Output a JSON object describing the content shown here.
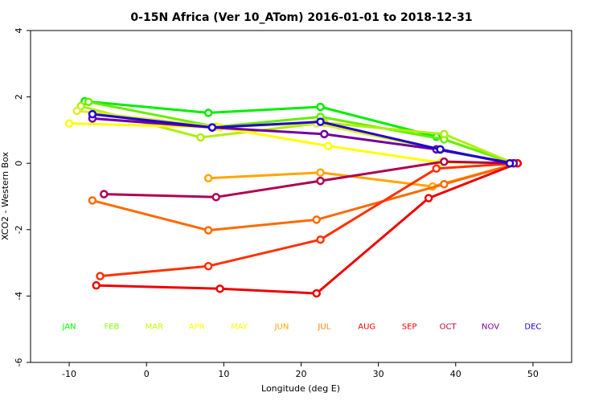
{
  "chart_data": {
    "type": "line",
    "title": "0-15N Africa (Ver 10_ATom)   2016-01-01 to 2018-12-31",
    "xlabel": "Longitude (deg E)",
    "ylabel": "XCO2 - Western Box",
    "xlim": [
      -15,
      55
    ],
    "ylim": [
      -6,
      4
    ],
    "xticks": [
      -10,
      0,
      10,
      20,
      30,
      40,
      50
    ],
    "yticks": [
      -6,
      -4,
      -2,
      0,
      2,
      4
    ],
    "xtick_labels": [
      "-10",
      "0",
      "10",
      "20",
      "30",
      "40",
      "50"
    ],
    "ytick_labels": [
      "-6",
      "-4",
      "-2",
      "0",
      "2",
      "4"
    ],
    "grid": false,
    "legend": {
      "placement": "bottom inside plot, horizontal row",
      "labels": [
        "JAN",
        "FEB",
        "MAR",
        "APR",
        "MAY",
        "JUN",
        "JUL",
        "AUG",
        "SEP",
        "OCT",
        "NOV",
        "DEC"
      ],
      "label_x": [
        -10,
        -4.5,
        1,
        6.5,
        12,
        17.5,
        23,
        28.5,
        34,
        39,
        44.5,
        50
      ],
      "label_colors": [
        "#00ff00",
        "#7fff00",
        "#bfff00",
        "#ffff00",
        "#ffff00",
        "#ffa500",
        "#ff7f00",
        "#ff0000",
        "#ff0000",
        "#c00030",
        "#8000a0",
        "#2000c0"
      ]
    },
    "series": [
      {
        "label": "JAN",
        "color": "#00ee00",
        "x": [
          -8,
          8,
          22.5,
          37.5,
          47.5
        ],
        "y": [
          1.87,
          1.52,
          1.7,
          0.8,
          0.0
        ]
      },
      {
        "label": "FEB",
        "color": "#66ee00",
        "x": [
          -7.5,
          9,
          22.5,
          38.5,
          47.5
        ],
        "y": [
          1.85,
          1.1,
          1.4,
          0.72,
          0.0
        ]
      },
      {
        "label": "MAR",
        "color": "#b0ee10",
        "x": [
          -8.5,
          7,
          23,
          38.5,
          47.5
        ],
        "y": [
          1.72,
          0.78,
          1.22,
          0.88,
          0.0
        ]
      },
      {
        "label": "APR",
        "color": "#ddee30",
        "x": [
          -9,
          9,
          22,
          38,
          47.5
        ],
        "y": [
          1.58,
          1.1,
          1.2,
          0.4,
          0.0
        ]
      },
      {
        "label": "MAY",
        "color": "#ffff00",
        "x": [
          -10,
          9.5,
          23.5,
          38,
          47.5
        ],
        "y": [
          1.2,
          1.08,
          0.52,
          0.02,
          0.0
        ]
      },
      {
        "label": "JUN",
        "color": "#ffa500",
        "x": [
          8,
          22.5,
          37,
          48
        ],
        "y": [
          -0.45,
          -0.28,
          -0.7,
          0.0
        ]
      },
      {
        "label": "JUL",
        "color": "#ff6a00",
        "x": [
          -7,
          8,
          22,
          38.5,
          48
        ],
        "y": [
          -1.12,
          -2.02,
          -1.7,
          -0.63,
          0.0
        ]
      },
      {
        "label": "AUG",
        "color": "#ff3000",
        "x": [
          -6,
          8,
          22.5,
          37.5,
          48
        ],
        "y": [
          -3.4,
          -3.1,
          -2.3,
          -0.16,
          0.0
        ]
      },
      {
        "label": "SEP",
        "color": "#ee0000",
        "x": [
          -6.5,
          9.5,
          22,
          36.5,
          48
        ],
        "y": [
          -3.68,
          -3.78,
          -3.92,
          -1.05,
          0.0
        ]
      },
      {
        "label": "OCT",
        "color": "#b00050",
        "x": [
          -5.5,
          9,
          22.5,
          38.5,
          47.5
        ],
        "y": [
          -0.93,
          -1.02,
          -0.53,
          0.05,
          0.0
        ]
      },
      {
        "label": "NOV",
        "color": "#7000a0",
        "x": [
          -7,
          8.5,
          23,
          37.5,
          47.5
        ],
        "y": [
          1.35,
          1.08,
          0.88,
          0.42,
          0.0
        ]
      },
      {
        "label": "DEC",
        "color": "#2000d0",
        "x": [
          -7,
          8.5,
          22.5,
          38,
          47
        ],
        "y": [
          1.48,
          1.08,
          1.25,
          0.42,
          0.0
        ]
      }
    ]
  }
}
